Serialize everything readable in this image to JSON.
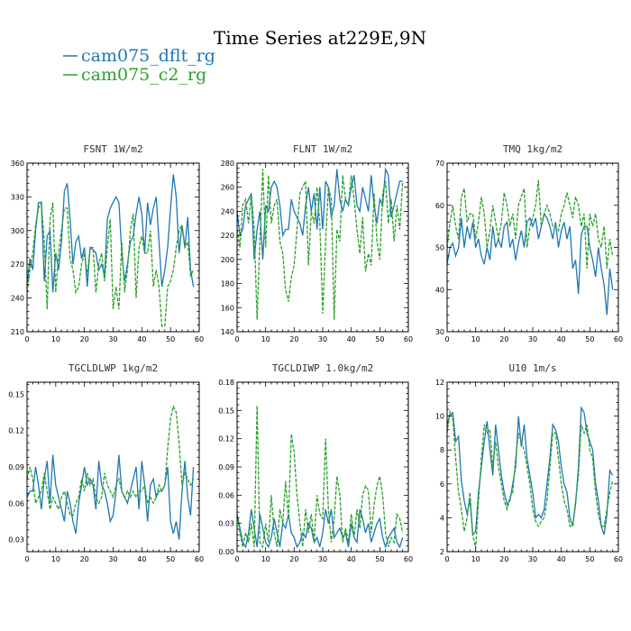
{
  "figure": {
    "title": "Time Series at229E,9N",
    "legend": [
      {
        "label": "cam075_dflt_rg",
        "color": "#1f77b4",
        "dash": "solid"
      },
      {
        "label": "cam075_c2_rg",
        "color": "#2ca02c",
        "dash": "dashed"
      }
    ]
  },
  "chart_data": [
    {
      "type": "line",
      "title": "FSNT   1W/m2",
      "xlim": [
        0,
        60
      ],
      "ylim": [
        210,
        360
      ],
      "xticks": [
        0,
        10,
        20,
        30,
        40,
        50,
        60
      ],
      "yticks": [
        210,
        240,
        270,
        300,
        330,
        360
      ],
      "series": [
        {
          "name": "cam075_dflt_rg",
          "values": [
            252,
            275,
            265,
            300,
            325,
            325,
            255,
            295,
            300,
            245,
            280,
            265,
            290,
            335,
            342,
            310,
            270,
            290,
            295,
            275,
            285,
            250,
            285,
            283,
            280,
            265,
            270,
            260,
            310,
            320,
            325,
            330,
            325,
            280,
            255,
            270,
            290,
            295,
            315,
            330,
            315,
            280,
            325,
            305,
            320,
            330,
            290,
            250,
            265,
            285,
            320,
            350,
            330,
            280,
            305,
            285,
            312,
            265,
            250
          ]
        },
        {
          "name": "cam075_c2_rg",
          "values": [
            245,
            265,
            280,
            305,
            320,
            325,
            290,
            230,
            310,
            325,
            245,
            280,
            300,
            320,
            320,
            275,
            265,
            245,
            250,
            270,
            280,
            260,
            285,
            285,
            245,
            270,
            280,
            255,
            285,
            310,
            230,
            250,
            230,
            290,
            245,
            265,
            300,
            315,
            240,
            285,
            295,
            280,
            280,
            300,
            250,
            265,
            250,
            215,
            215,
            250,
            255,
            265,
            285,
            300,
            305,
            285,
            290,
            260,
            265
          ]
        }
      ]
    },
    {
      "type": "line",
      "title": "FLNT   1W/m2",
      "xlim": [
        0,
        60
      ],
      "ylim": [
        140,
        280
      ],
      "xticks": [
        0,
        10,
        20,
        30,
        40,
        50,
        60
      ],
      "yticks": [
        140,
        160,
        180,
        200,
        220,
        240,
        260,
        280
      ],
      "series": [
        {
          "name": "cam075_dflt_rg",
          "values": [
            240,
            220,
            225,
            245,
            250,
            255,
            200,
            225,
            240,
            200,
            245,
            240,
            260,
            265,
            260,
            245,
            220,
            225,
            225,
            250,
            240,
            235,
            230,
            220,
            245,
            260,
            240,
            255,
            225,
            260,
            225,
            265,
            260,
            235,
            245,
            275,
            250,
            240,
            250,
            245,
            260,
            270,
            245,
            240,
            260,
            250,
            240,
            270,
            245,
            230,
            250,
            245,
            275,
            270,
            235,
            245,
            255,
            265,
            265
          ]
        },
        {
          "name": "cam075_c2_rg",
          "values": [
            225,
            210,
            245,
            250,
            230,
            255,
            225,
            150,
            215,
            275,
            210,
            270,
            230,
            245,
            250,
            215,
            205,
            175,
            165,
            185,
            195,
            225,
            255,
            260,
            265,
            195,
            240,
            230,
            260,
            230,
            155,
            215,
            260,
            250,
            150,
            225,
            215,
            270,
            250,
            245,
            270,
            250,
            225,
            205,
            235,
            190,
            205,
            195,
            255,
            215,
            200,
            255,
            265,
            230,
            250,
            215,
            245,
            225,
            265
          ]
        }
      ]
    },
    {
      "type": "line",
      "title": "TMQ   1kg/m2",
      "xlim": [
        0,
        60
      ],
      "ylim": [
        30,
        70
      ],
      "xticks": [
        0,
        10,
        20,
        30,
        40,
        50,
        60
      ],
      "yticks": [
        30,
        40,
        50,
        60,
        70
      ],
      "series": [
        {
          "name": "cam075_dflt_rg",
          "values": [
            46,
            50,
            51,
            48,
            50,
            57,
            50,
            55,
            52,
            56,
            50,
            52,
            48,
            46,
            50,
            47,
            55,
            50,
            52,
            50,
            55,
            56,
            50,
            52,
            47,
            51,
            54,
            50,
            56,
            57,
            55,
            57,
            52,
            55,
            58,
            57,
            55,
            52,
            56,
            50,
            54,
            56,
            52,
            55,
            45,
            47,
            39,
            53,
            55,
            55,
            50,
            47,
            43,
            50,
            45,
            41,
            34,
            45,
            40
          ]
        },
        {
          "name": "cam075_c2_rg",
          "values": [
            50,
            56,
            60,
            55,
            52,
            62,
            64,
            56,
            58,
            58,
            52,
            56,
            62,
            58,
            50,
            54,
            60,
            56,
            52,
            56,
            63,
            60,
            55,
            58,
            52,
            60,
            62,
            64,
            50,
            55,
            57,
            60,
            66,
            55,
            58,
            60,
            58,
            55,
            55,
            54,
            58,
            60,
            63,
            60,
            57,
            62,
            60,
            55,
            58,
            45,
            58,
            55,
            58,
            52,
            50,
            55,
            45,
            52,
            48
          ]
        }
      ]
    },
    {
      "type": "line",
      "title": "TGCLDLWP   1kg/m2",
      "xlim": [
        0,
        60
      ],
      "ylim": [
        0.02,
        0.16
      ],
      "xticks": [
        0,
        10,
        20,
        30,
        40,
        50,
        60
      ],
      "yticks": [
        0.03,
        0.06,
        0.09,
        0.12,
        0.15
      ],
      "series": [
        {
          "name": "cam075_dflt_rg",
          "values": [
            0.065,
            0.07,
            0.07,
            0.09,
            0.075,
            0.055,
            0.08,
            0.095,
            0.06,
            0.1,
            0.075,
            0.065,
            0.055,
            0.045,
            0.07,
            0.06,
            0.045,
            0.035,
            0.06,
            0.075,
            0.09,
            0.075,
            0.08,
            0.075,
            0.055,
            0.095,
            0.075,
            0.07,
            0.06,
            0.045,
            0.05,
            0.07,
            0.1,
            0.07,
            0.065,
            0.06,
            0.07,
            0.08,
            0.09,
            0.055,
            0.095,
            0.075,
            0.045,
            0.075,
            0.08,
            0.065,
            0.07,
            0.07,
            0.075,
            0.09,
            0.045,
            0.035,
            0.045,
            0.03,
            0.07,
            0.095,
            0.065,
            0.05,
            0.09
          ]
        },
        {
          "name": "cam075_c2_rg",
          "values": [
            0.08,
            0.09,
            0.08,
            0.06,
            0.065,
            0.07,
            0.085,
            0.07,
            0.055,
            0.065,
            0.06,
            0.055,
            0.065,
            0.07,
            0.06,
            0.05,
            0.05,
            0.06,
            0.065,
            0.08,
            0.07,
            0.085,
            0.075,
            0.08,
            0.065,
            0.06,
            0.065,
            0.085,
            0.075,
            0.07,
            0.065,
            0.075,
            0.08,
            0.07,
            0.065,
            0.07,
            0.065,
            0.07,
            0.065,
            0.07,
            0.07,
            0.075,
            0.06,
            0.065,
            0.06,
            0.065,
            0.075,
            0.07,
            0.075,
            0.105,
            0.13,
            0.14,
            0.135,
            0.11,
            0.075,
            0.085,
            0.08,
            0.075,
            0.08
          ]
        }
      ]
    },
    {
      "type": "line",
      "title": "TGCLDIWP   1.0kg/m2",
      "xlim": [
        0,
        60
      ],
      "ylim": [
        0,
        0.18
      ],
      "xticks": [
        0,
        10,
        20,
        30,
        40,
        50,
        60
      ],
      "yticks": [
        0,
        0.03,
        0.06,
        0.09,
        0.12,
        0.15,
        0.18
      ],
      "series": [
        {
          "name": "cam075_dflt_rg",
          "values": [
            0.04,
            0.025,
            0.01,
            0.005,
            0.02,
            0.045,
            0.025,
            0.005,
            0.04,
            0.025,
            0.01,
            0.005,
            0.015,
            0.035,
            0.02,
            0.005,
            0.03,
            0.025,
            0.04,
            0.02,
            0.015,
            0.005,
            0.01,
            0.02,
            0.015,
            0.03,
            0.025,
            0.01,
            0.015,
            0.005,
            0.02,
            0.045,
            0.03,
            0.045,
            0.015,
            0.02,
            0.025,
            0.015,
            0.02,
            0.005,
            0.03,
            0.015,
            0.01,
            0.045,
            0.035,
            0.02,
            0.03,
            0.01,
            0.02,
            0.03,
            0.035,
            0.015,
            0.005,
            0.015,
            0.02,
            0.025,
            0.01,
            0.005,
            0.015
          ]
        },
        {
          "name": "cam075_c2_rg",
          "values": [
            0.04,
            0.02,
            0.005,
            0.02,
            0.01,
            0.03,
            0.005,
            0.155,
            0.01,
            0.005,
            0.03,
            0.01,
            0.06,
            0.02,
            0.005,
            0.045,
            0.03,
            0.075,
            0.035,
            0.125,
            0.105,
            0.06,
            0.03,
            0.005,
            0.045,
            0.02,
            0.04,
            0.01,
            0.06,
            0.04,
            0.035,
            0.12,
            0.045,
            0.01,
            0.035,
            0.08,
            0.06,
            0.01,
            0.025,
            0.01,
            0.04,
            0.015,
            0.045,
            0.025,
            0.06,
            0.07,
            0.065,
            0.02,
            0.05,
            0.07,
            0.08,
            0.06,
            0.02,
            0.005,
            0.015,
            0.01,
            0.04,
            0.035,
            0.02
          ]
        }
      ]
    },
    {
      "type": "line",
      "title": "U10   1m/s",
      "xlim": [
        0,
        60
      ],
      "ylim": [
        2,
        12
      ],
      "xticks": [
        0,
        10,
        20,
        30,
        40,
        50,
        60
      ],
      "yticks": [
        2,
        4,
        6,
        8,
        10,
        12
      ],
      "series": [
        {
          "name": "cam075_dflt_rg",
          "values": [
            9.5,
            10.1,
            10.2,
            8.5,
            8.8,
            6.2,
            5.0,
            4.2,
            5.1,
            3.0,
            3.2,
            5.5,
            7.0,
            8.5,
            9.7,
            8.0,
            6.5,
            9.5,
            8.0,
            6.5,
            5.5,
            4.8,
            5.0,
            6.0,
            7.0,
            10.0,
            8.2,
            9.5,
            7.5,
            6.5,
            5.5,
            4.0,
            4.2,
            4.0,
            4.5,
            6.0,
            7.5,
            9.5,
            9.2,
            8.5,
            7.0,
            6.0,
            5.5,
            4.0,
            3.5,
            4.8,
            7.0,
            10.5,
            10.2,
            9.0,
            8.5,
            8.0,
            6.0,
            5.0,
            3.5,
            3.0,
            4.2,
            6.8,
            6.5
          ]
        },
        {
          "name": "cam075_c2_rg",
          "values": [
            9.0,
            10.3,
            9.8,
            7.5,
            5.5,
            4.5,
            3.2,
            4.0,
            5.5,
            3.0,
            2.2,
            5.0,
            7.5,
            9.5,
            9.0,
            9.2,
            7.0,
            8.5,
            7.0,
            6.0,
            5.0,
            4.5,
            5.2,
            5.5,
            7.5,
            9.0,
            8.5,
            8.0,
            7.0,
            6.0,
            4.5,
            3.8,
            3.5,
            3.8,
            4.0,
            5.0,
            7.0,
            9.0,
            9.0,
            7.5,
            6.0,
            5.0,
            4.5,
            3.5,
            3.5,
            5.0,
            6.5,
            9.5,
            9.0,
            9.5,
            8.0,
            7.5,
            5.5,
            4.2,
            3.5,
            3.5,
            4.5,
            5.5,
            6.2
          ]
        }
      ]
    }
  ]
}
